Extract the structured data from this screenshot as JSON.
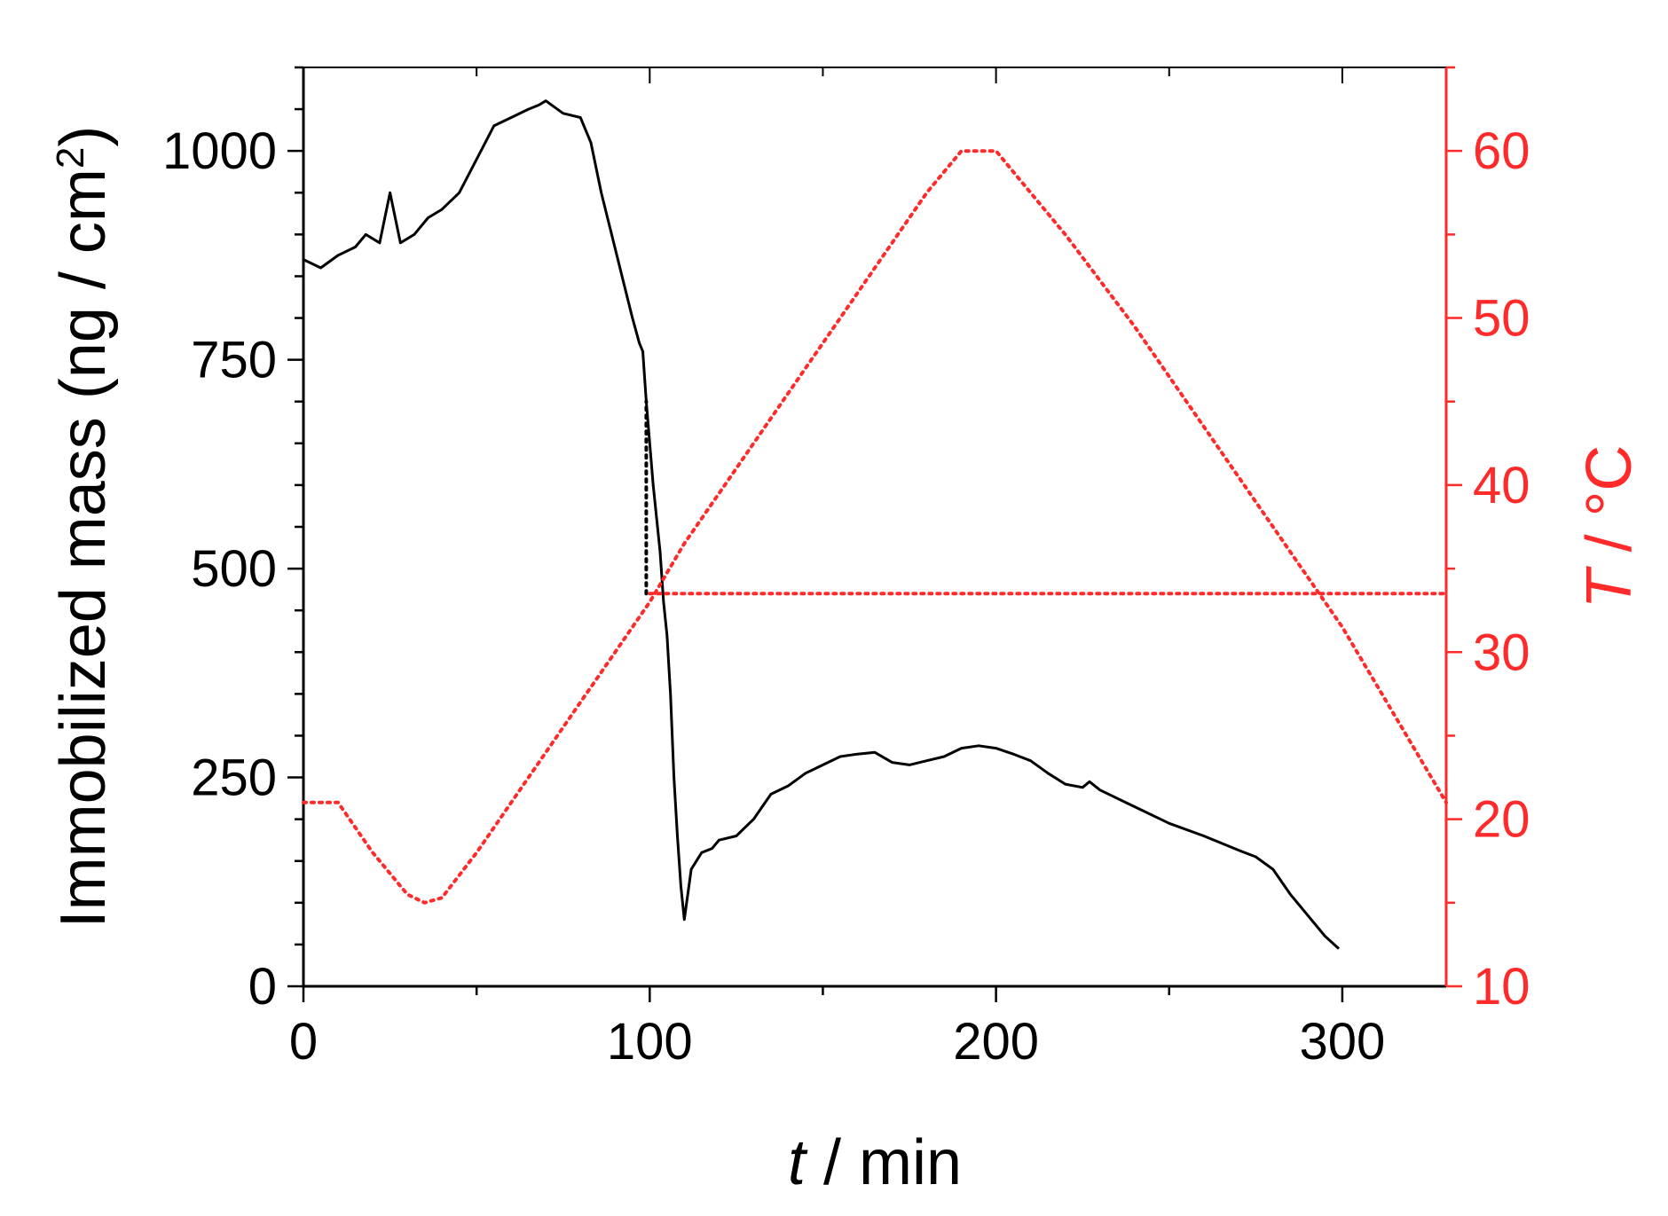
{
  "chart_data": {
    "type": "line",
    "xlabel": {
      "italic": "t",
      "rest": " / min"
    },
    "ylabel_left": {
      "text": "Immobilized mass (ng / cm",
      "sup": "2",
      "close": ")"
    },
    "ylabel_right": {
      "italic": "T",
      "rest": " / °C"
    },
    "xlim": [
      0,
      330
    ],
    "ylim_left": [
      0,
      1100
    ],
    "ylim_right": [
      10,
      65
    ],
    "x_ticks": [
      0,
      100,
      200,
      300
    ],
    "x_tick_labels": [
      "0",
      "100",
      "200",
      "300"
    ],
    "y_left_ticks": [
      0,
      250,
      500,
      750,
      1000
    ],
    "y_left_tick_labels": [
      "0",
      "250",
      "500",
      "750",
      "1000"
    ],
    "y_right_ticks": [
      10,
      20,
      30,
      40,
      50,
      60
    ],
    "y_right_tick_labels": [
      "10",
      "20",
      "30",
      "40",
      "50",
      "60"
    ],
    "colors": {
      "mass": "#000000",
      "temperature": "#ff2a2a"
    },
    "series": [
      {
        "axis": "left",
        "style": "solid",
        "x": [
          0,
          5,
          10,
          15,
          18,
          22,
          25,
          28,
          32,
          36,
          40,
          45,
          50,
          55,
          60,
          65,
          68,
          70,
          75,
          80,
          83,
          86,
          89,
          92,
          95,
          97,
          98,
          99,
          100,
          101,
          102,
          103,
          104,
          105,
          106,
          107,
          108,
          109,
          110,
          112,
          115,
          118,
          120,
          125,
          130,
          135,
          140,
          145,
          150,
          155,
          160,
          165,
          170,
          175,
          180,
          185,
          190,
          195,
          200,
          205,
          210,
          215,
          220,
          225,
          227,
          230,
          240,
          250,
          260,
          270,
          275,
          280,
          285,
          290,
          295,
          299
        ],
        "y": [
          870,
          860,
          875,
          885,
          900,
          890,
          950,
          890,
          900,
          920,
          930,
          950,
          990,
          1030,
          1040,
          1050,
          1055,
          1060,
          1045,
          1040,
          1010,
          950,
          900,
          850,
          800,
          770,
          760,
          700,
          650,
          600,
          560,
          520,
          460,
          420,
          350,
          250,
          180,
          120,
          80,
          140,
          160,
          165,
          175,
          180,
          200,
          230,
          240,
          255,
          265,
          275,
          278,
          280,
          268,
          265,
          270,
          275,
          285,
          288,
          285,
          278,
          270,
          255,
          242,
          238,
          245,
          235,
          215,
          195,
          180,
          163,
          155,
          140,
          110,
          85,
          60,
          45
        ]
      },
      {
        "axis": "right",
        "style": "dotted",
        "x": [
          0,
          10,
          20,
          30,
          35,
          40,
          50,
          60,
          70,
          80,
          90,
          100,
          110,
          120,
          130,
          140,
          150,
          160,
          170,
          180,
          190,
          200,
          210,
          220,
          240,
          260,
          280,
          300,
          320,
          330
        ],
        "y": [
          21,
          21,
          18,
          15.5,
          15,
          15.3,
          18,
          21,
          24,
          27,
          30,
          33,
          36.5,
          39.5,
          42.5,
          45.5,
          48.5,
          51.5,
          54.5,
          57.5,
          60,
          60,
          57.5,
          55,
          49.5,
          43.5,
          37.5,
          31.5,
          24.5,
          21
        ]
      },
      {
        "axis": "right",
        "style": "dotted",
        "x": [
          100,
          330
        ],
        "y": [
          33.5,
          33.5
        ]
      },
      {
        "axis": "left",
        "style": "dotted",
        "x": [
          99,
          99
        ],
        "y": [
          470,
          700
        ]
      }
    ]
  }
}
